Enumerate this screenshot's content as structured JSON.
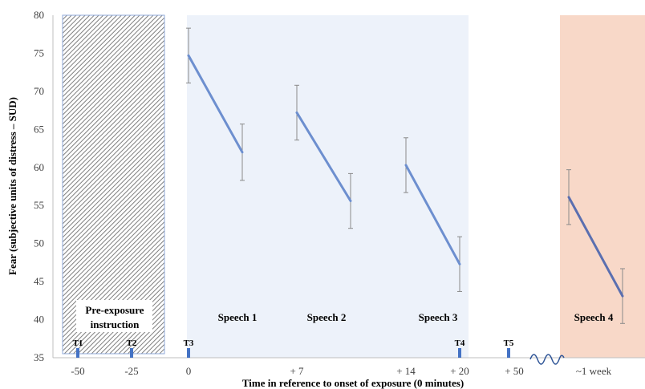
{
  "chart_data": {
    "type": "line",
    "xlabel": "Time in reference to onset of exposure  (0 minutes)",
    "ylabel": "Fear (subjective units of distress – SUD)",
    "ylim": [
      35,
      80
    ],
    "y_ticks": [
      35,
      40,
      45,
      50,
      55,
      60,
      65,
      70,
      75,
      80
    ],
    "x_tick_labels": [
      "-50",
      "-25",
      "0",
      "+ 7",
      "+ 14",
      "+ 20",
      "+ 50",
      "~1 week"
    ],
    "grid": false,
    "legend": "none",
    "series": [
      {
        "label": "Speech 1",
        "x": [
          "0",
          "+ 7"
        ],
        "values": [
          74.7,
          62.0
        ],
        "error": [
          3.6,
          3.7
        ]
      },
      {
        "label": "Speech 2",
        "x": [
          "+ 7",
          "+ 14"
        ],
        "values": [
          67.2,
          55.6
        ],
        "error": [
          3.6,
          3.6
        ]
      },
      {
        "label": "Speech 3",
        "x": [
          "+ 14",
          "+ 20"
        ],
        "values": [
          60.3,
          47.3
        ],
        "error": [
          3.6,
          3.6
        ]
      },
      {
        "label": "Speech 4",
        "x": [
          "~1 week",
          "~1 week"
        ],
        "values": [
          56.1,
          43.1
        ],
        "error": [
          3.6,
          3.6
        ]
      }
    ],
    "regions": [
      {
        "label": "Pre-exposure\ninstruction",
        "style": "hatched",
        "color": "#9e9e9e"
      },
      {
        "label": "",
        "style": "shaded",
        "color": "#edf2fa"
      },
      {
        "label": "",
        "style": "shaded",
        "color": "#f8d8c8"
      }
    ],
    "markers": [
      "T1",
      "T2",
      "T3",
      "T4",
      "T5"
    ],
    "line_color": "#6d8fcf",
    "errorbar_color": "#8a8a8a",
    "marker_color": "#4472c4"
  }
}
